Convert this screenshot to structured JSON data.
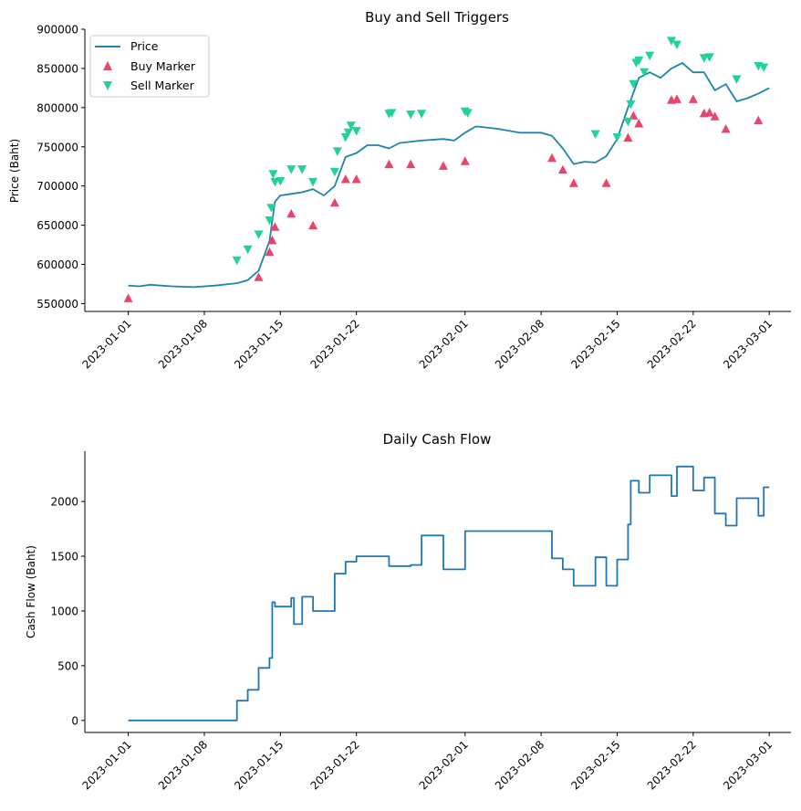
{
  "chart_data": [
    {
      "type": "line",
      "title": "Buy and Sell Triggers",
      "xlabel": "",
      "ylabel": "Price (Baht)",
      "x_tick_labels": [
        "2023-01-01",
        "2023-01-08",
        "2023-01-15",
        "2023-01-22",
        "2023-02-01",
        "2023-02-08",
        "2023-02-15",
        "2023-02-22",
        "2023-03-01"
      ],
      "y_tick_labels": [
        "550000",
        "600000",
        "650000",
        "700000",
        "750000",
        "800000",
        "850000",
        "900000"
      ],
      "xlim": [
        "2022-12-28",
        "2023-03-03"
      ],
      "ylim": [
        540000,
        900000
      ],
      "legend": {
        "position": "top-left",
        "entries": [
          "Price",
          "Buy Marker",
          "Sell Marker"
        ]
      },
      "series": [
        {
          "name": "Price",
          "kind": "line",
          "color": "#1f83b0",
          "points": [
            [
              "2023-01-01",
              573000
            ],
            [
              "2023-01-02",
              572000
            ],
            [
              "2023-01-03",
              574000
            ],
            [
              "2023-01-05",
              572000
            ],
            [
              "2023-01-07",
              571000
            ],
            [
              "2023-01-09",
              573000
            ],
            [
              "2023-01-11",
              576000
            ],
            [
              "2023-01-12",
              580000
            ],
            [
              "2023-01-13",
              592000
            ],
            [
              "2023-01-14",
              630000
            ],
            [
              "2023-01-14T12:00",
              680000
            ],
            [
              "2023-01-15",
              688000
            ],
            [
              "2023-01-16",
              690000
            ],
            [
              "2023-01-17",
              692000
            ],
            [
              "2023-01-18",
              696000
            ],
            [
              "2023-01-19",
              688000
            ],
            [
              "2023-01-20",
              700000
            ],
            [
              "2023-01-21",
              737000
            ],
            [
              "2023-01-22",
              742000
            ],
            [
              "2023-01-23",
              752000
            ],
            [
              "2023-01-24",
              752000
            ],
            [
              "2023-01-25",
              748000
            ],
            [
              "2023-01-26",
              755000
            ],
            [
              "2023-01-28",
              758000
            ],
            [
              "2023-01-30",
              760000
            ],
            [
              "2023-01-31",
              758000
            ],
            [
              "2023-02-01",
              768000
            ],
            [
              "2023-02-02",
              776000
            ],
            [
              "2023-02-04",
              773000
            ],
            [
              "2023-02-06",
              768000
            ],
            [
              "2023-02-08",
              768000
            ],
            [
              "2023-02-09",
              764000
            ],
            [
              "2023-02-10",
              748000
            ],
            [
              "2023-02-11",
              728000
            ],
            [
              "2023-02-12",
              731000
            ],
            [
              "2023-02-13",
              730000
            ],
            [
              "2023-02-14",
              738000
            ],
            [
              "2023-02-15",
              760000
            ],
            [
              "2023-02-16",
              800000
            ],
            [
              "2023-02-17",
              838000
            ],
            [
              "2023-02-18",
              845000
            ],
            [
              "2023-02-19",
              838000
            ],
            [
              "2023-02-20",
              850000
            ],
            [
              "2023-02-21",
              857000
            ],
            [
              "2023-02-22",
              845000
            ],
            [
              "2023-02-23",
              845000
            ],
            [
              "2023-02-24",
              822000
            ],
            [
              "2023-02-25",
              830000
            ],
            [
              "2023-02-26",
              808000
            ],
            [
              "2023-02-27",
              812000
            ],
            [
              "2023-02-28",
              818000
            ],
            [
              "2023-03-01",
              825000
            ]
          ]
        },
        {
          "name": "Buy Marker",
          "kind": "scatter",
          "color": "#e8456b",
          "points": [
            [
              "2023-01-01",
              557000
            ],
            [
              "2023-01-13",
              584000
            ],
            [
              "2023-01-14",
              616000
            ],
            [
              "2023-01-14T06:00",
              631000
            ],
            [
              "2023-01-14T12:00",
              648000
            ],
            [
              "2023-01-16",
              665000
            ],
            [
              "2023-01-18",
              650000
            ],
            [
              "2023-01-20",
              679000
            ],
            [
              "2023-01-21",
              709000
            ],
            [
              "2023-01-22",
              709000
            ],
            [
              "2023-01-25",
              728000
            ],
            [
              "2023-01-27",
              728000
            ],
            [
              "2023-01-30",
              726000
            ],
            [
              "2023-02-01",
              732000
            ],
            [
              "2023-02-09",
              736000
            ],
            [
              "2023-02-10",
              721000
            ],
            [
              "2023-02-11",
              704000
            ],
            [
              "2023-02-14",
              704000
            ],
            [
              "2023-02-16",
              762000
            ],
            [
              "2023-02-16T12:00",
              790000
            ],
            [
              "2023-02-17",
              780000
            ],
            [
              "2023-02-20",
              810000
            ],
            [
              "2023-02-20T12:00",
              811000
            ],
            [
              "2023-02-22",
              811000
            ],
            [
              "2023-02-23",
              793000
            ],
            [
              "2023-02-23T12:00",
              794000
            ],
            [
              "2023-02-24",
              789000
            ],
            [
              "2023-02-25",
              773000
            ],
            [
              "2023-02-28",
              784000
            ]
          ]
        },
        {
          "name": "Sell Marker",
          "kind": "scatter",
          "color": "#21d29a",
          "points": [
            [
              "2023-01-11",
              605000
            ],
            [
              "2023-01-12",
              619000
            ],
            [
              "2023-01-13",
              638000
            ],
            [
              "2023-01-14",
              656000
            ],
            [
              "2023-01-14T04:00",
              672000
            ],
            [
              "2023-01-14T08:00",
              715000
            ],
            [
              "2023-01-14T12:00",
              705000
            ],
            [
              "2023-01-15",
              706000
            ],
            [
              "2023-01-16",
              721000
            ],
            [
              "2023-01-17",
              721000
            ],
            [
              "2023-01-18",
              705000
            ],
            [
              "2023-01-20",
              718000
            ],
            [
              "2023-01-20T06:00",
              744000
            ],
            [
              "2023-01-21",
              762000
            ],
            [
              "2023-01-21T06:00",
              768000
            ],
            [
              "2023-01-21T12:00",
              777000
            ],
            [
              "2023-01-22",
              770000
            ],
            [
              "2023-01-25",
              792000
            ],
            [
              "2023-01-25T06:00",
              793000
            ],
            [
              "2023-01-27",
              791000
            ],
            [
              "2023-01-28",
              792000
            ],
            [
              "2023-02-01",
              795000
            ],
            [
              "2023-02-01T06:00",
              793000
            ],
            [
              "2023-02-13",
              766000
            ],
            [
              "2023-02-15",
              762000
            ],
            [
              "2023-02-16",
              782000
            ],
            [
              "2023-02-16T06:00",
              804000
            ],
            [
              "2023-02-16T12:00",
              830000
            ],
            [
              "2023-02-16T18:00",
              857000
            ],
            [
              "2023-02-17",
              860000
            ],
            [
              "2023-02-17T12:00",
              845000
            ],
            [
              "2023-02-18",
              866000
            ],
            [
              "2023-02-20",
              885000
            ],
            [
              "2023-02-20T12:00",
              880000
            ],
            [
              "2023-02-23",
              863000
            ],
            [
              "2023-02-23T12:00",
              864000
            ],
            [
              "2023-02-26",
              836000
            ],
            [
              "2023-02-28",
              853000
            ],
            [
              "2023-02-28T12:00",
              851000
            ]
          ]
        }
      ]
    },
    {
      "type": "line",
      "title": "Daily Cash Flow",
      "xlabel": "",
      "ylabel": "Cash Flow (Baht)",
      "x_tick_labels": [
        "2023-01-01",
        "2023-01-08",
        "2023-01-15",
        "2023-01-22",
        "2023-02-01",
        "2023-02-08",
        "2023-02-15",
        "2023-02-22",
        "2023-03-01"
      ],
      "y_tick_labels": [
        "0",
        "500",
        "1000",
        "1500",
        "2000"
      ],
      "xlim": [
        "2022-12-28",
        "2023-03-03"
      ],
      "ylim": [
        -110,
        2460
      ],
      "series": [
        {
          "kind": "line",
          "color": "#1f77b4",
          "points": [
            [
              "2023-01-01",
              0
            ],
            [
              "2023-01-11",
              0
            ],
            [
              "2023-01-11",
              180
            ],
            [
              "2023-01-12",
              180
            ],
            [
              "2023-01-12",
              280
            ],
            [
              "2023-01-13",
              280
            ],
            [
              "2023-01-13",
              480
            ],
            [
              "2023-01-14",
              480
            ],
            [
              "2023-01-14",
              570
            ],
            [
              "2023-01-14T06:00",
              570
            ],
            [
              "2023-01-14T06:00",
              1080
            ],
            [
              "2023-01-14T12:00",
              1080
            ],
            [
              "2023-01-14T12:00",
              1040
            ],
            [
              "2023-01-15",
              1040
            ],
            [
              "2023-01-16",
              1040
            ],
            [
              "2023-01-16",
              1120
            ],
            [
              "2023-01-16T06:00",
              1120
            ],
            [
              "2023-01-16T06:00",
              880
            ],
            [
              "2023-01-17",
              880
            ],
            [
              "2023-01-17",
              1130
            ],
            [
              "2023-01-18",
              1130
            ],
            [
              "2023-01-18",
              1000
            ],
            [
              "2023-01-20",
              1000
            ],
            [
              "2023-01-20",
              1340
            ],
            [
              "2023-01-21",
              1340
            ],
            [
              "2023-01-21",
              1450
            ],
            [
              "2023-01-22",
              1450
            ],
            [
              "2023-01-22",
              1500
            ],
            [
              "2023-01-25",
              1500
            ],
            [
              "2023-01-25",
              1410
            ],
            [
              "2023-01-27",
              1410
            ],
            [
              "2023-01-27",
              1420
            ],
            [
              "2023-01-28",
              1420
            ],
            [
              "2023-01-28",
              1690
            ],
            [
              "2023-01-30",
              1690
            ],
            [
              "2023-01-30",
              1380
            ],
            [
              "2023-02-01",
              1380
            ],
            [
              "2023-02-01",
              1730
            ],
            [
              "2023-02-09",
              1730
            ],
            [
              "2023-02-09",
              1480
            ],
            [
              "2023-02-10",
              1480
            ],
            [
              "2023-02-10",
              1380
            ],
            [
              "2023-02-11",
              1380
            ],
            [
              "2023-02-11",
              1230
            ],
            [
              "2023-02-13",
              1230
            ],
            [
              "2023-02-13",
              1490
            ],
            [
              "2023-02-14",
              1490
            ],
            [
              "2023-02-14",
              1230
            ],
            [
              "2023-02-15",
              1230
            ],
            [
              "2023-02-15",
              1470
            ],
            [
              "2023-02-16",
              1470
            ],
            [
              "2023-02-16",
              1790
            ],
            [
              "2023-02-16T06:00",
              1790
            ],
            [
              "2023-02-16T06:00",
              2190
            ],
            [
              "2023-02-17",
              2190
            ],
            [
              "2023-02-17",
              2080
            ],
            [
              "2023-02-18",
              2080
            ],
            [
              "2023-02-18",
              2240
            ],
            [
              "2023-02-20",
              2240
            ],
            [
              "2023-02-20",
              2050
            ],
            [
              "2023-02-20T12:00",
              2050
            ],
            [
              "2023-02-20T12:00",
              2320
            ],
            [
              "2023-02-22",
              2320
            ],
            [
              "2023-02-22",
              2100
            ],
            [
              "2023-02-23",
              2100
            ],
            [
              "2023-02-23",
              2220
            ],
            [
              "2023-02-24",
              2220
            ],
            [
              "2023-02-24",
              1890
            ],
            [
              "2023-02-25",
              1890
            ],
            [
              "2023-02-25",
              1780
            ],
            [
              "2023-02-26",
              1780
            ],
            [
              "2023-02-26",
              2030
            ],
            [
              "2023-02-28",
              2030
            ],
            [
              "2023-02-28",
              1870
            ],
            [
              "2023-02-28T12:00",
              1870
            ],
            [
              "2023-02-28T12:00",
              2130
            ],
            [
              "2023-03-01",
              2130
            ]
          ]
        }
      ]
    }
  ]
}
